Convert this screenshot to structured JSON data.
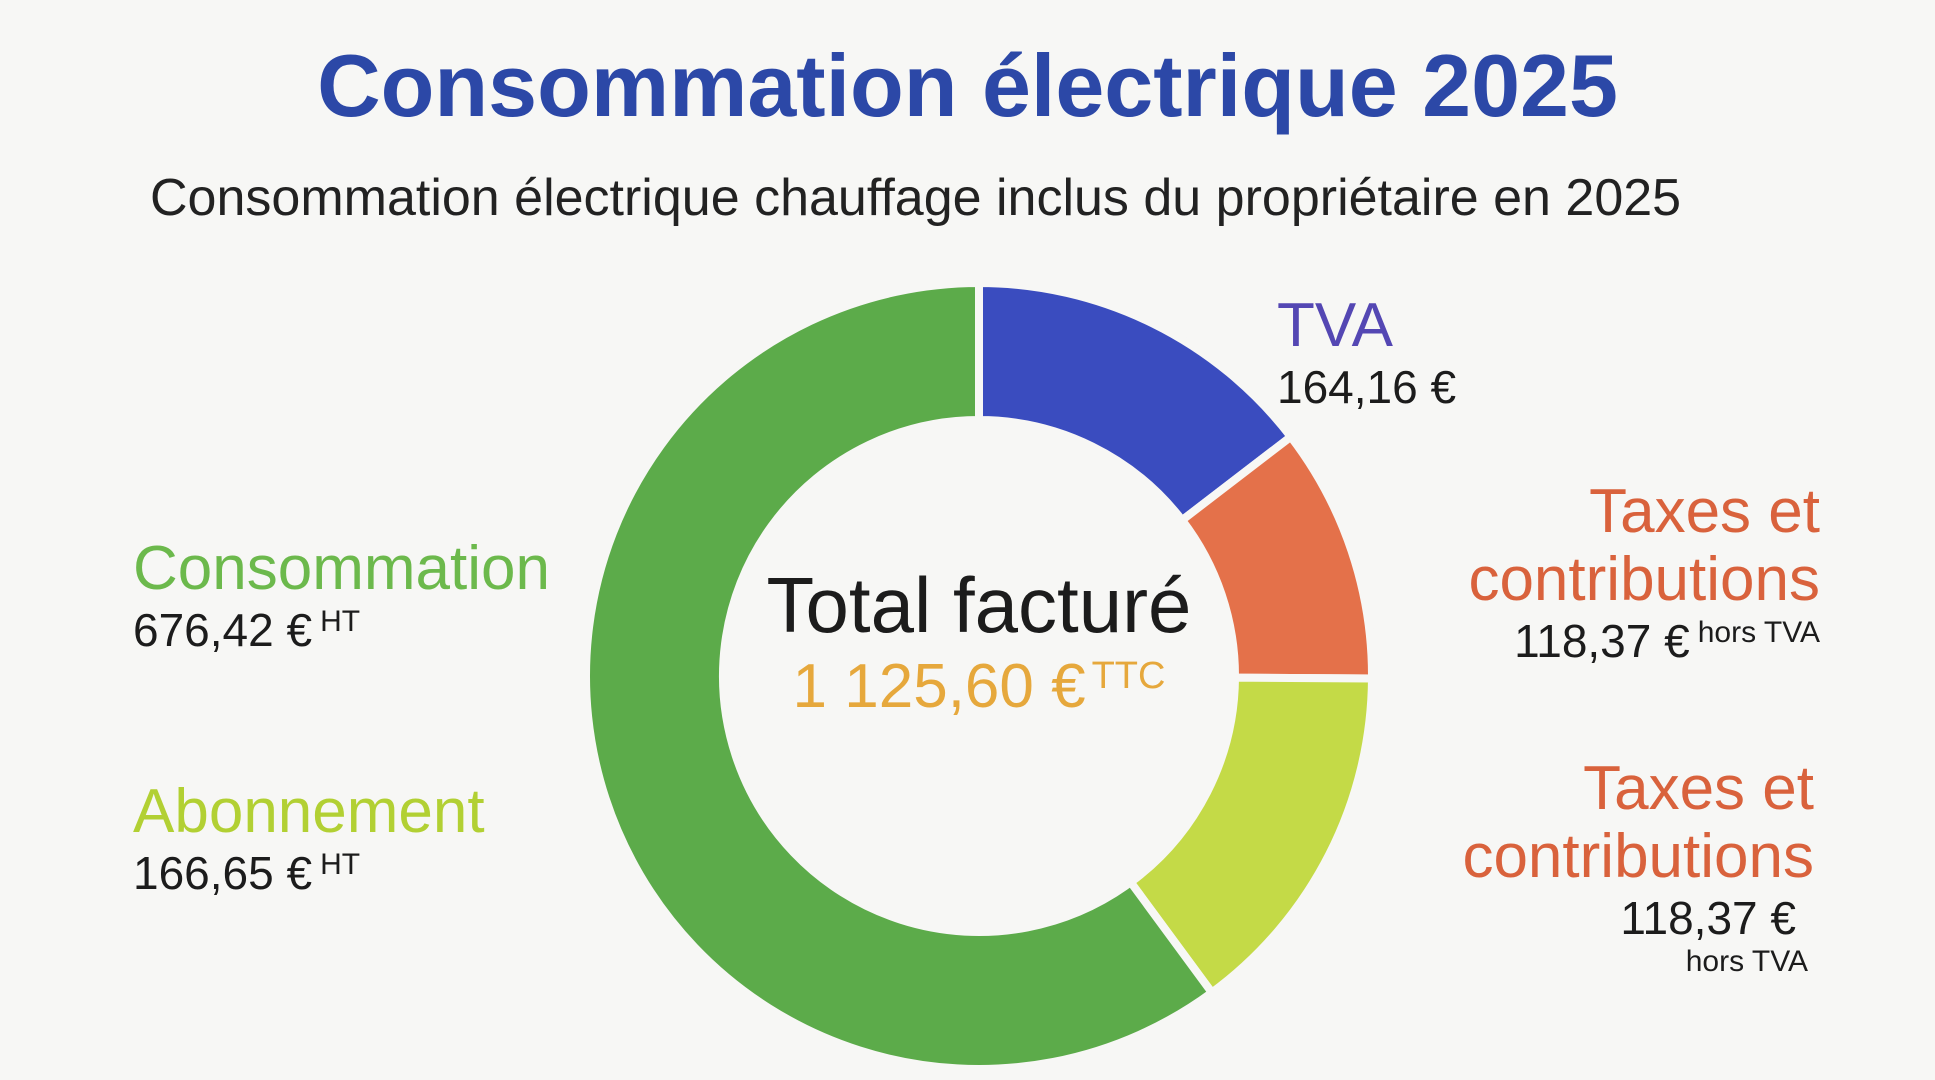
{
  "chart_data": {
    "type": "donut",
    "title": "Consommation électrique 2025",
    "subtitle": "Consommation électrique chauffage inclus du propriétaire en 2025",
    "categories": [
      "TVA",
      "Taxes et contributions",
      "Abonnement",
      "Consommation"
    ],
    "values": [
      164.16,
      118.37,
      166.65,
      676.42
    ],
    "value_labels": [
      "164,16 €",
      "118,37 €",
      "166,65 €",
      "676,42 €"
    ],
    "value_suffixes": [
      null,
      "hors TVA",
      "HT",
      "HT"
    ],
    "colors": [
      "#3a4cbf",
      "#e4714a",
      "#c4da47",
      "#5cab4a"
    ],
    "label_colors": [
      "#5447b3",
      "#d9623c",
      "#b2d033",
      "#6cb94c"
    ],
    "center_label": "Total facturé",
    "center_value_label": "1 125,60 €",
    "center_suffix": "TTC",
    "annotation": {
      "label": "Taxes et contributions",
      "value_label": "118,37 €",
      "suffix": "hors TVA"
    }
  }
}
